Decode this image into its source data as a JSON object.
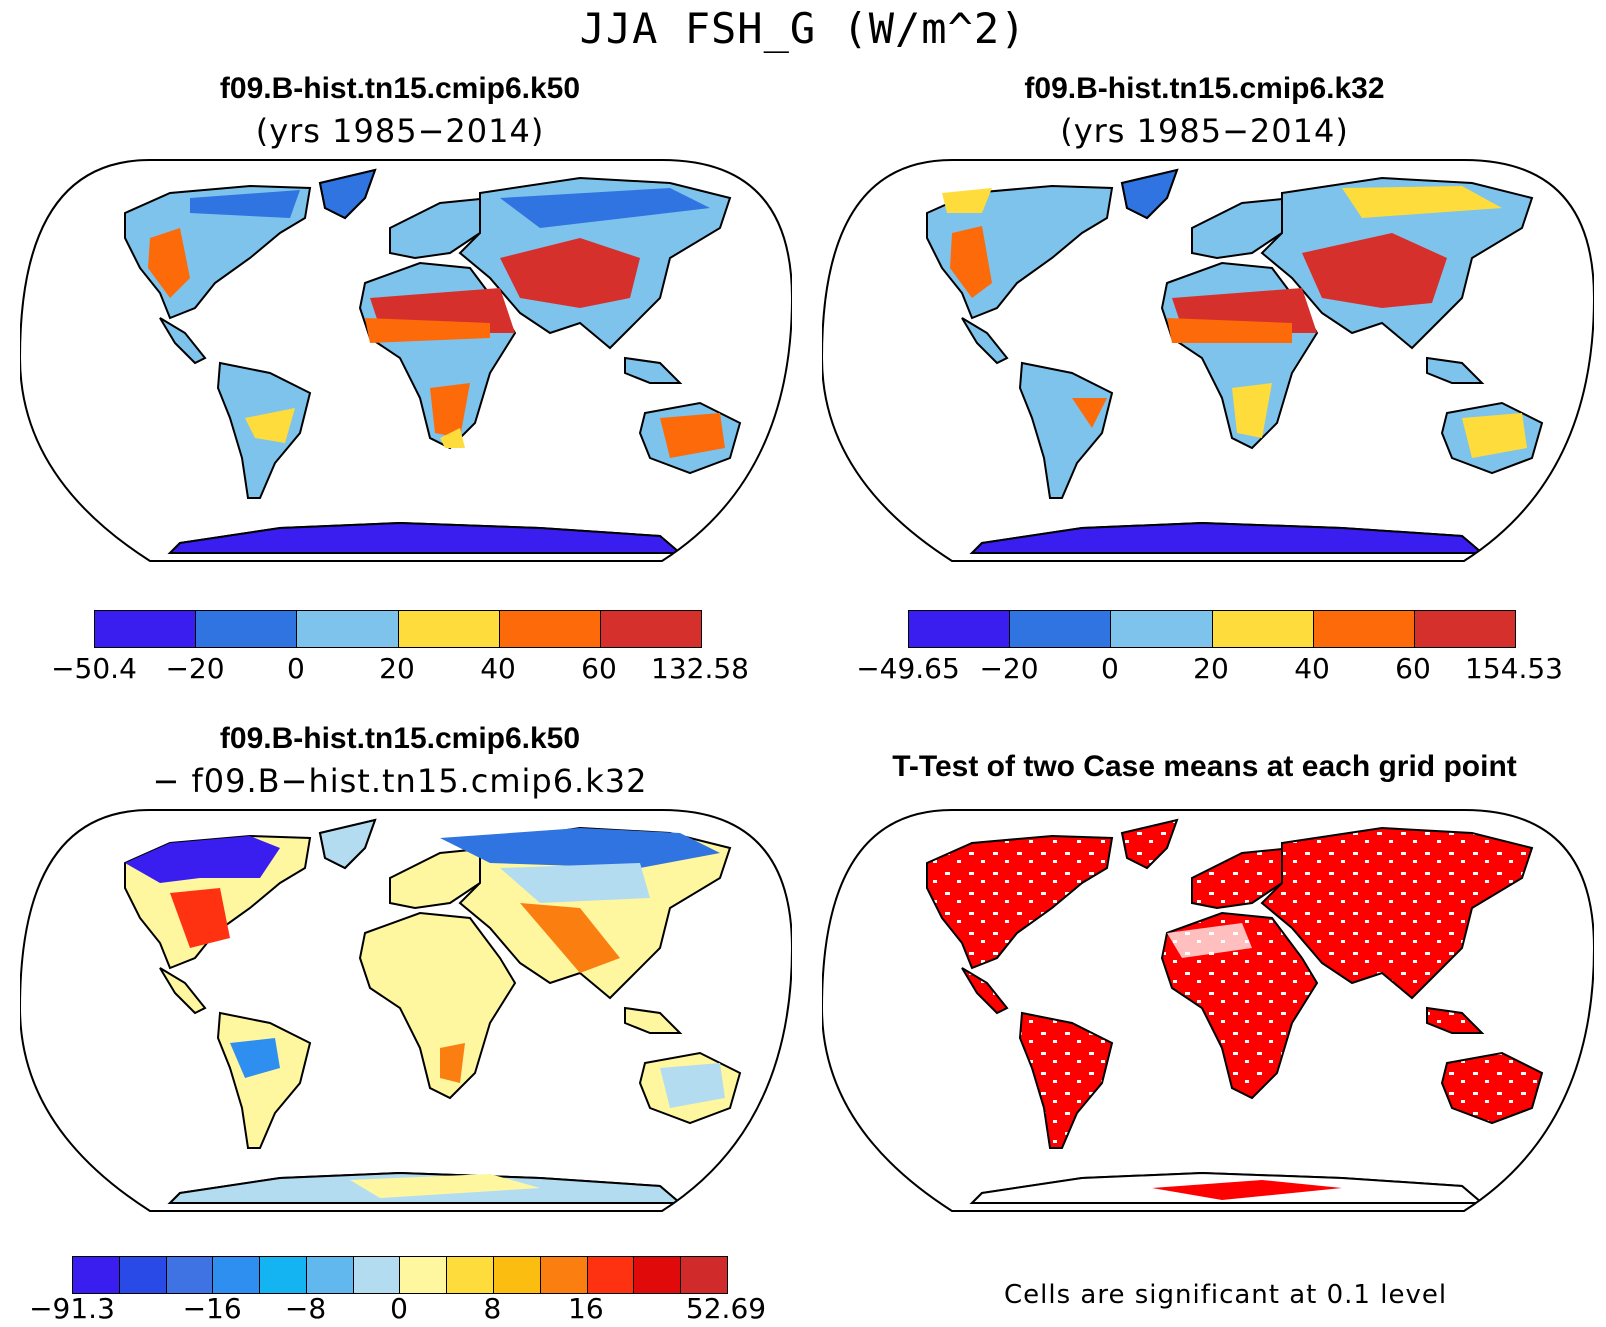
{
  "main_title": "JJA FSH_G (W/m^2)",
  "panels": {
    "top_left": {
      "title": "f09.B-hist.tn15.cmip6.k50",
      "subtitle": "(yrs 1985−2014)",
      "colorbar": {
        "colors": [
          "#3a1ef0",
          "#2f74e0",
          "#7ec3ec",
          "#fddc3c",
          "#fd6a0a",
          "#d6302c"
        ],
        "labels": [
          "−50.4",
          "−20",
          "0",
          "20",
          "40",
          "60",
          "132.58"
        ]
      }
    },
    "top_right": {
      "title": "f09.B-hist.tn15.cmip6.k32",
      "subtitle": "(yrs 1985−2014)",
      "colorbar": {
        "colors": [
          "#3a1ef0",
          "#2f74e0",
          "#7ec3ec",
          "#fddc3c",
          "#fd6a0a",
          "#d6302c"
        ],
        "labels": [
          "−49.65",
          "−20",
          "0",
          "20",
          "40",
          "60",
          "154.53"
        ]
      }
    },
    "bottom_left": {
      "title": "f09.B-hist.tn15.cmip6.k50",
      "subtitle": "− f09.B−hist.tn15.cmip6.k32",
      "colorbar": {
        "colors": [
          "#3a1ef0",
          "#2a4ae8",
          "#3f72e2",
          "#2f8ff0",
          "#14b4f2",
          "#60b8ee",
          "#b4dcf0",
          "#fef7a0",
          "#fddc3c",
          "#fbbd10",
          "#fb7f10",
          "#fe3210",
          "#e00a0a",
          "#d02a2a"
        ],
        "labels": [
          "−91.3",
          "−16",
          "−8",
          "0",
          "8",
          "16",
          "52.69"
        ],
        "label_positions": [
          0,
          3,
          5,
          7,
          9,
          11,
          14
        ]
      }
    },
    "bottom_right": {
      "title": "T-Test of two Case means at each grid point",
      "note": "Cells are significant at 0.1 level",
      "colors": [
        "#ff0000"
      ]
    }
  }
}
